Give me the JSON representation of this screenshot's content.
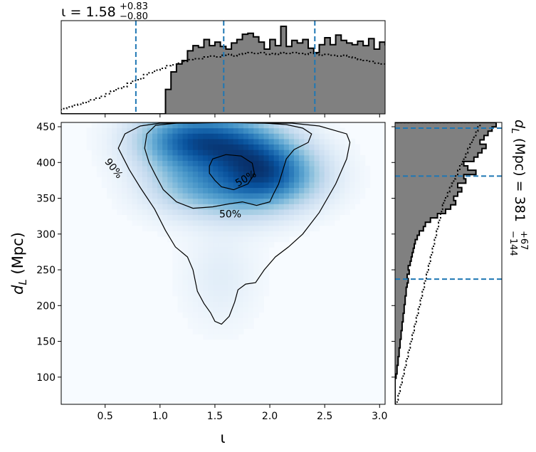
{
  "chart_data": [
    {
      "type": "heatmap",
      "panel": "joint",
      "xlabel": "ι",
      "ylabel_main": "d",
      "ylabel_sub": "L",
      "ylabel_unit": " (Mpc)",
      "xlim": [
        0.1,
        3.05
      ],
      "ylim": [
        62,
        456
      ],
      "xticks": [
        0.5,
        1.0,
        1.5,
        2.0,
        2.5,
        3.0
      ],
      "xtick_labels": [
        "0.5",
        "1.0",
        "1.5",
        "2.0",
        "2.5",
        "3.0"
      ],
      "yticks": [
        100,
        150,
        200,
        250,
        300,
        350,
        400,
        450
      ],
      "ytick_labels": [
        "100",
        "150",
        "200",
        "250",
        "300",
        "350",
        "400",
        "450"
      ],
      "colormap": "Blues",
      "density_peaks": [
        {
          "x": 1.2,
          "y": 432,
          "weight": 1.0
        },
        {
          "x": 1.62,
          "y": 430,
          "weight": 0.75
        },
        {
          "x": 2.05,
          "y": 380,
          "weight": 0.85
        },
        {
          "x": 1.3,
          "y": 370,
          "weight": 0.55
        },
        {
          "x": 1.75,
          "y": 360,
          "weight": 0.5
        },
        {
          "x": 1.9,
          "y": 410,
          "weight": 0.6
        },
        {
          "x": 1.55,
          "y": 240,
          "weight": 0.12
        }
      ],
      "contours": [
        {
          "level": "90%",
          "label": "90%",
          "label_at": [
            0.58,
            392
          ],
          "label_rotation": 52,
          "path": [
            [
              0.62,
              420
            ],
            [
              0.68,
              440
            ],
            [
              0.82,
              451
            ],
            [
              1.0,
              455
            ],
            [
              1.3,
              455
            ],
            [
              1.6,
              456
            ],
            [
              1.9,
              455
            ],
            [
              2.2,
              455
            ],
            [
              2.45,
              451
            ],
            [
              2.7,
              440
            ],
            [
              2.73,
              428
            ],
            [
              2.7,
              405
            ],
            [
              2.6,
              370
            ],
            [
              2.45,
              330
            ],
            [
              2.3,
              300
            ],
            [
              2.17,
              282
            ],
            [
              2.05,
              268
            ],
            [
              1.95,
              250
            ],
            [
              1.87,
              232
            ],
            [
              1.78,
              230
            ],
            [
              1.71,
              222
            ],
            [
              1.68,
              205
            ],
            [
              1.63,
              185
            ],
            [
              1.56,
              174
            ],
            [
              1.5,
              178
            ],
            [
              1.46,
              190
            ],
            [
              1.4,
              203
            ],
            [
              1.34,
              220
            ],
            [
              1.3,
              250
            ],
            [
              1.25,
              268
            ],
            [
              1.14,
              282
            ],
            [
              1.05,
              305
            ],
            [
              0.95,
              335
            ],
            [
              0.82,
              365
            ],
            [
              0.72,
              390
            ],
            [
              0.62,
              420
            ]
          ]
        },
        {
          "level": "50%",
          "label": "50%",
          "label_at": [
            1.64,
            328
          ],
          "label_rotation": 0,
          "path": [
            [
              0.86,
              420
            ],
            [
              0.88,
              440
            ],
            [
              0.96,
              452
            ],
            [
              1.15,
              455
            ],
            [
              1.4,
              456
            ],
            [
              1.7,
              456
            ],
            [
              1.95,
              455
            ],
            [
              2.15,
              453
            ],
            [
              2.3,
              448
            ],
            [
              2.38,
              440
            ],
            [
              2.35,
              428
            ],
            [
              2.22,
              418
            ],
            [
              2.15,
              405
            ],
            [
              2.12,
              390
            ],
            [
              2.08,
              370
            ],
            [
              2.03,
              355
            ],
            [
              2.0,
              345
            ],
            [
              1.88,
              340
            ],
            [
              1.75,
              345
            ],
            [
              1.62,
              342
            ],
            [
              1.48,
              338
            ],
            [
              1.3,
              336
            ],
            [
              1.15,
              345
            ],
            [
              1.03,
              362
            ],
            [
              0.96,
              382
            ],
            [
              0.9,
              400
            ],
            [
              0.86,
              420
            ]
          ]
        },
        {
          "level": "50%",
          "label": "50%",
          "label_at": [
            1.78,
            378
          ],
          "label_rotation": -30,
          "path": [
            [
              1.45,
              395
            ],
            [
              1.48,
              405
            ],
            [
              1.6,
              411
            ],
            [
              1.74,
              409
            ],
            [
              1.84,
              399
            ],
            [
              1.86,
              384
            ],
            [
              1.8,
              370
            ],
            [
              1.67,
              362
            ],
            [
              1.56,
              366
            ],
            [
              1.5,
              375
            ],
            [
              1.45,
              385
            ],
            [
              1.45,
              395
            ]
          ]
        }
      ]
    },
    {
      "type": "histogram",
      "panel": "marginal-top",
      "title_prefix": "ι = ",
      "title_value": "1.58",
      "title_plus": "+0.83",
      "title_minus": "−0.80",
      "quantile_lines": [
        0.78,
        1.58,
        2.41
      ],
      "bin_edges_start": 0.1,
      "bin_width": 0.05,
      "filled_counts": [
        0,
        0,
        0,
        0,
        0,
        0,
        0,
        0,
        0,
        0,
        0,
        0,
        0,
        0,
        0,
        0,
        0,
        0,
        0,
        0.28,
        0.48,
        0.57,
        0.61,
        0.72,
        0.78,
        0.76,
        0.85,
        0.78,
        0.82,
        0.77,
        0.74,
        0.81,
        0.85,
        0.91,
        0.92,
        0.88,
        0.82,
        0.74,
        0.85,
        0.78,
        1.0,
        0.77,
        0.84,
        0.81,
        0.85,
        0.75,
        0.7,
        0.79,
        0.87,
        0.79,
        0.9,
        0.84,
        0.81,
        0.79,
        0.83,
        0.78,
        0.86,
        0.74,
        0.82,
        0.79,
        0.7,
        0.84,
        0.73,
        0.55,
        0.45,
        0.31,
        0.24,
        0.18,
        0.1,
        0.06,
        0.02,
        0,
        0,
        0,
        0,
        0,
        0,
        0,
        0,
        0
      ],
      "prior_counts": [
        0.06,
        0.08,
        0.1,
        0.11,
        0.13,
        0.16,
        0.18,
        0.2,
        0.23,
        0.26,
        0.29,
        0.31,
        0.35,
        0.38,
        0.4,
        0.45,
        0.47,
        0.5,
        0.52,
        0.55,
        0.56,
        0.58,
        0.6,
        0.62,
        0.63,
        0.63,
        0.65,
        0.66,
        0.65,
        0.67,
        0.68,
        0.66,
        0.68,
        0.69,
        0.7,
        0.69,
        0.7,
        0.68,
        0.69,
        0.68,
        0.7,
        0.69,
        0.7,
        0.69,
        0.68,
        0.7,
        0.69,
        0.67,
        0.68,
        0.67,
        0.66,
        0.67,
        0.65,
        0.64,
        0.62,
        0.61,
        0.6,
        0.58,
        0.57,
        0.55,
        0.52,
        0.5,
        0.48,
        0.46,
        0.43,
        0.4,
        0.38,
        0.35,
        0.32,
        0.3,
        0.27,
        0.24,
        0.21,
        0.19,
        0.16,
        0.13,
        0.11,
        0.09,
        0.07,
        0.05
      ]
    },
    {
      "type": "histogram",
      "panel": "marginal-right",
      "label_prefix": "d",
      "label_sub": "L",
      "label_mid": " (Mpc) = 381",
      "label_plus": "+67",
      "label_minus": "−144",
      "quantile_lines": [
        237,
        381,
        448
      ],
      "bin_edges_start": 62,
      "bin_width": 6.06,
      "filled_counts": [
        0,
        0,
        0,
        0,
        0,
        0,
        0.01,
        0.02,
        0.02,
        0.03,
        0.03,
        0.04,
        0.04,
        0.05,
        0.05,
        0.06,
        0.06,
        0.07,
        0.07,
        0.08,
        0.08,
        0.09,
        0.09,
        0.1,
        0.1,
        0.11,
        0.11,
        0.12,
        0.13,
        0.12,
        0.14,
        0.13,
        0.15,
        0.16,
        0.17,
        0.18,
        0.19,
        0.2,
        0.22,
        0.24,
        0.28,
        0.3,
        0.35,
        0.42,
        0.5,
        0.55,
        0.6,
        0.58,
        0.62,
        0.66,
        0.62,
        0.7,
        0.68,
        0.8,
        0.72,
        0.68,
        0.78,
        0.82,
        0.86,
        0.9,
        0.84,
        0.88,
        0.92,
        0.96,
        1.0
      ],
      "prior_counts": [
        0.02,
        0.03,
        0.04,
        0.05,
        0.06,
        0.07,
        0.08,
        0.09,
        0.1,
        0.11,
        0.12,
        0.13,
        0.14,
        0.15,
        0.16,
        0.17,
        0.18,
        0.19,
        0.2,
        0.21,
        0.22,
        0.23,
        0.24,
        0.25,
        0.26,
        0.27,
        0.28,
        0.29,
        0.3,
        0.31,
        0.32,
        0.33,
        0.34,
        0.35,
        0.36,
        0.37,
        0.38,
        0.39,
        0.4,
        0.41,
        0.42,
        0.43,
        0.44,
        0.45,
        0.46,
        0.47,
        0.48,
        0.5,
        0.52,
        0.54,
        0.56,
        0.58,
        0.6,
        0.62,
        0.64,
        0.66,
        0.68,
        0.7,
        0.72,
        0.74,
        0.76,
        0.78,
        0.8,
        0.82,
        0.84
      ]
    }
  ]
}
